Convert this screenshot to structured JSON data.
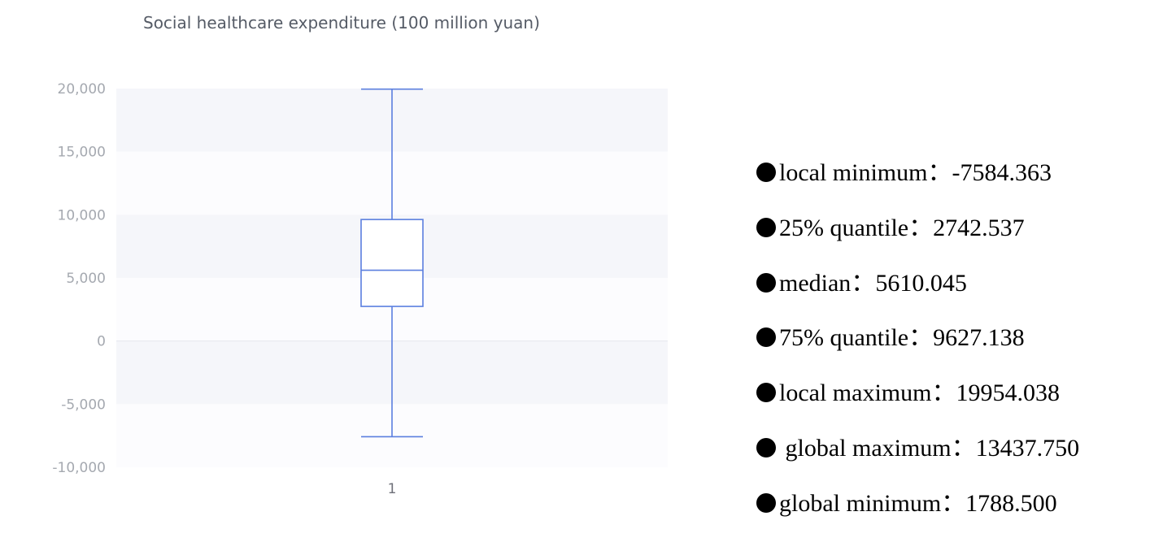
{
  "chart_data": {
    "type": "boxplot",
    "title": "Social healthcare expenditure (100 million yuan)",
    "categories": [
      "1"
    ],
    "ylim": [
      -10000,
      20000
    ],
    "yticks": [
      "20,000",
      "15,000",
      "10,000",
      "5,000",
      "0",
      "-5,000",
      "-10,000"
    ],
    "ytick_values": [
      20000,
      15000,
      10000,
      5000,
      0,
      -5000,
      -10000
    ],
    "box": {
      "min": -7584.363,
      "q1": 2742.537,
      "median": 5610.045,
      "q3": 9627.138,
      "max": 19954.038
    },
    "grid": "alternating-bands",
    "box_color": "#5b7fdf",
    "band_color": "#f5f6fa"
  },
  "stats": [
    {
      "label": "local minimum：",
      "value": "-7584.363"
    },
    {
      "label": "25% quantile：",
      "value": "2742.537"
    },
    {
      "label": "median：",
      "value": "5610.045"
    },
    {
      "label": "75% quantile：",
      "value": "9627.138"
    },
    {
      "label": "local maximum：",
      "value": "19954.038"
    },
    {
      "label": " global maximum：",
      "value": "13437.750"
    },
    {
      "label": "global minimum：",
      "value": "1788.500"
    }
  ]
}
